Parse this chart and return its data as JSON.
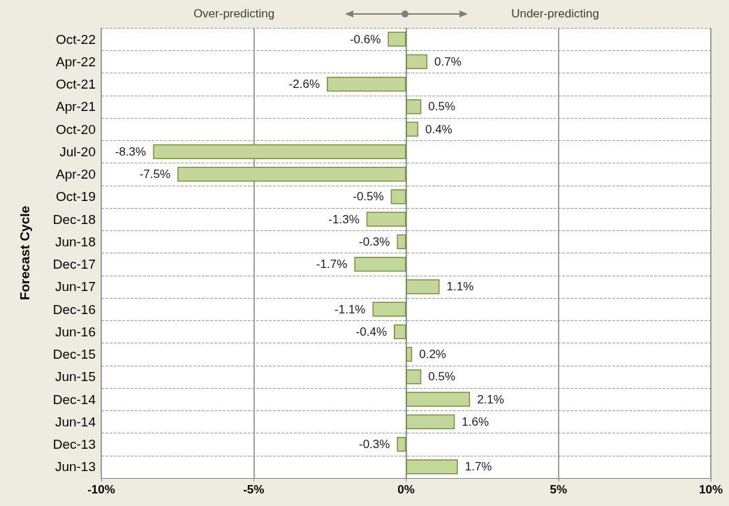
{
  "chart_data": {
    "type": "bar",
    "orientation": "horizontal",
    "ylabel": "Forecast Cycle",
    "annotations": [
      "Over-predicting",
      "Under-predicting"
    ],
    "categories": [
      "Oct-22",
      "Apr-22",
      "Oct-21",
      "Apr-21",
      "Oct-20",
      "Jul-20",
      "Apr-20",
      "Oct-19",
      "Dec-18",
      "Jun-18",
      "Dec-17",
      "Jun-17",
      "Dec-16",
      "Jun-16",
      "Dec-15",
      "Jun-15",
      "Dec-14",
      "Jun-14",
      "Dec-13",
      "Jun-13"
    ],
    "values": [
      -0.6,
      0.7,
      -2.6,
      0.5,
      0.4,
      -8.3,
      -7.5,
      -0.5,
      -1.3,
      -0.3,
      -1.7,
      1.1,
      -1.1,
      -0.4,
      0.2,
      0.5,
      2.1,
      1.6,
      -0.3,
      1.7
    ],
    "value_labels": [
      "-0.6%",
      "0.7%",
      "-2.6%",
      "0.5%",
      "0.4%",
      "-8.3%",
      "-7.5%",
      "-0.5%",
      "-1.3%",
      "-0.3%",
      "-1.7%",
      "1.1%",
      "-1.1%",
      "-0.4%",
      "0.2%",
      "0.5%",
      "2.1%",
      "1.6%",
      "-0.3%",
      "1.7%"
    ],
    "color": "#c4d79b",
    "xlim": [
      -10,
      10
    ],
    "xticks": [
      {
        "value": -10,
        "label": "-10%"
      },
      {
        "value": -5,
        "label": "-5%"
      },
      {
        "value": 0,
        "label": "0%"
      },
      {
        "value": 5,
        "label": "5%"
      },
      {
        "value": 10,
        "label": "10%"
      }
    ],
    "grid": true
  }
}
